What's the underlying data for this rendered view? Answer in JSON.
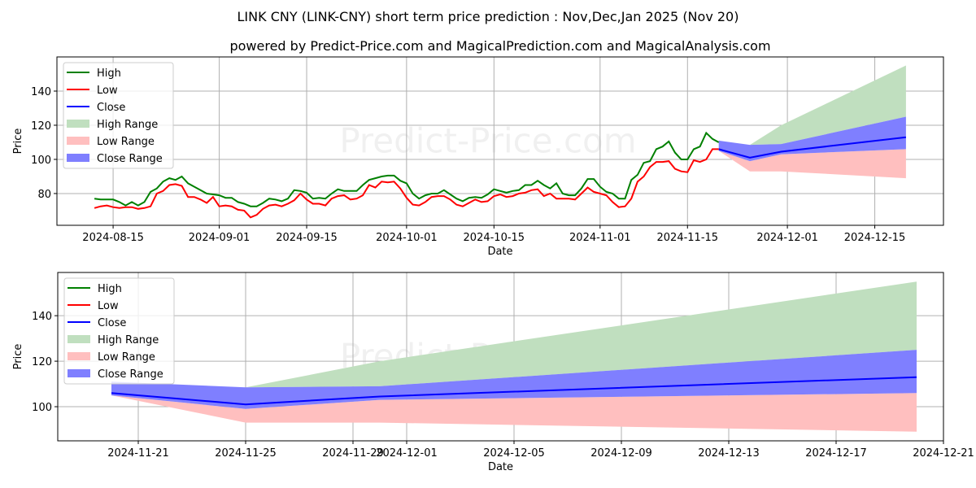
{
  "title": "LINK CNY (LINK-CNY) short term price prediction : Nov,Dec,Jan 2025 (Nov 20)",
  "subtitle": "powered by Predict-Price.com and MagicalPrediction.com and MagicalAnalysis.com",
  "watermark": "Predict-Price.com",
  "colors": {
    "high": "#008000",
    "low": "#ff0000",
    "close": "#0000ff",
    "high_range": "#c0dfbf",
    "low_range": "#ffbfbf",
    "close_range": "#7f7fff"
  },
  "chart_data": [
    {
      "type": "line",
      "xlabel": "Date",
      "ylabel": "Price",
      "xlim": [
        "2024-08-06",
        "2024-12-26"
      ],
      "ylim": [
        61.4,
        160
      ],
      "xticks": [
        "2024-08-15",
        "2024-09-01",
        "2024-09-15",
        "2024-10-01",
        "2024-10-15",
        "2024-11-01",
        "2024-11-15",
        "2024-12-01",
        "2024-12-15"
      ],
      "yticks": [
        80,
        100,
        120,
        140
      ],
      "legend": [
        "High",
        "Low",
        "Close",
        "High Range",
        "Low Range",
        "Close Range"
      ],
      "legend_position": "top-left",
      "history_start": "2024-08-12",
      "high": [
        77,
        76.5,
        76.5,
        76.5,
        75,
        73,
        75,
        73,
        75,
        81,
        83,
        87,
        89,
        88,
        90,
        86,
        84,
        82,
        80,
        79.5,
        79,
        77.5,
        77.5,
        75,
        74,
        72.5,
        72.5,
        74.5,
        77,
        76.5,
        75.5,
        77,
        82,
        81.5,
        80.5,
        77,
        77.5,
        77,
        80,
        82.5,
        81.5,
        81.5,
        81.5,
        85,
        88,
        89,
        90,
        90.5,
        90.5,
        87.5,
        86,
        80,
        77,
        79,
        80,
        80,
        82,
        79.5,
        77,
        75.5,
        77.5,
        78,
        77.5,
        79.5,
        82.5,
        81.5,
        80.5,
        81.5,
        82,
        85,
        85,
        87.5,
        85,
        83,
        86,
        80,
        79,
        79,
        83,
        88.5,
        88.5,
        84,
        81,
        80,
        77,
        77,
        88,
        91,
        98,
        99,
        106,
        107.5,
        110.5,
        104,
        100,
        100,
        106,
        107.5,
        115.5,
        112,
        110
      ],
      "low": [
        71.5,
        72.5,
        73,
        72,
        71.5,
        72,
        72,
        71,
        71.5,
        72.5,
        80,
        81.5,
        85,
        85.5,
        84.5,
        78,
        78,
        76.5,
        74.5,
        78,
        72.5,
        73,
        72.5,
        70.5,
        70,
        66,
        67.5,
        71,
        73,
        73.5,
        72.5,
        74,
        76,
        80,
        76.5,
        74,
        74,
        73,
        77,
        78.5,
        79,
        76.5,
        77,
        79,
        85,
        83.5,
        87,
        86.5,
        87,
        83,
        77.5,
        73.5,
        73,
        75,
        78,
        78.5,
        78.5,
        76.5,
        73.5,
        72.5,
        74.5,
        76.5,
        75,
        75.5,
        78.5,
        79.5,
        78,
        78.5,
        80,
        80.5,
        82,
        82.5,
        78.5,
        80,
        77,
        77,
        77,
        76.5,
        80,
        83.5,
        81,
        80,
        79,
        75,
        72,
        72.5,
        77,
        87,
        90,
        95.5,
        98.5,
        98.5,
        99,
        94.5,
        93,
        92.5,
        99.5,
        98.5,
        100,
        106,
        106
      ]
    },
    {
      "type": "area",
      "xlabel": "Date",
      "ylabel": "Price",
      "xlim": [
        "2024-11-18",
        "2024-12-21"
      ],
      "ylim": [
        85,
        159
      ],
      "xticks": [
        "2024-11-21",
        "2024-11-25",
        "2024-11-29",
        "2024-12-01",
        "2024-12-05",
        "2024-12-09",
        "2024-12-13",
        "2024-12-17",
        "2024-12-21"
      ],
      "yticks": [
        100,
        120,
        140
      ],
      "legend": [
        "High",
        "Low",
        "Close",
        "High Range",
        "Low Range",
        "Close Range"
      ],
      "legend_position": "top-left",
      "forecast_dates": [
        "2024-11-20",
        "2024-11-25",
        "2024-11-30",
        "2024-12-20"
      ],
      "high_range_upper": [
        111,
        108.5,
        120,
        155
      ],
      "close_range_upper": [
        111,
        108.5,
        109,
        125
      ],
      "close_range_lower": [
        105,
        99,
        103,
        106
      ],
      "low_range_lower": [
        105,
        93,
        93,
        89
      ],
      "close": [
        106,
        101,
        104.5,
        113
      ]
    }
  ]
}
